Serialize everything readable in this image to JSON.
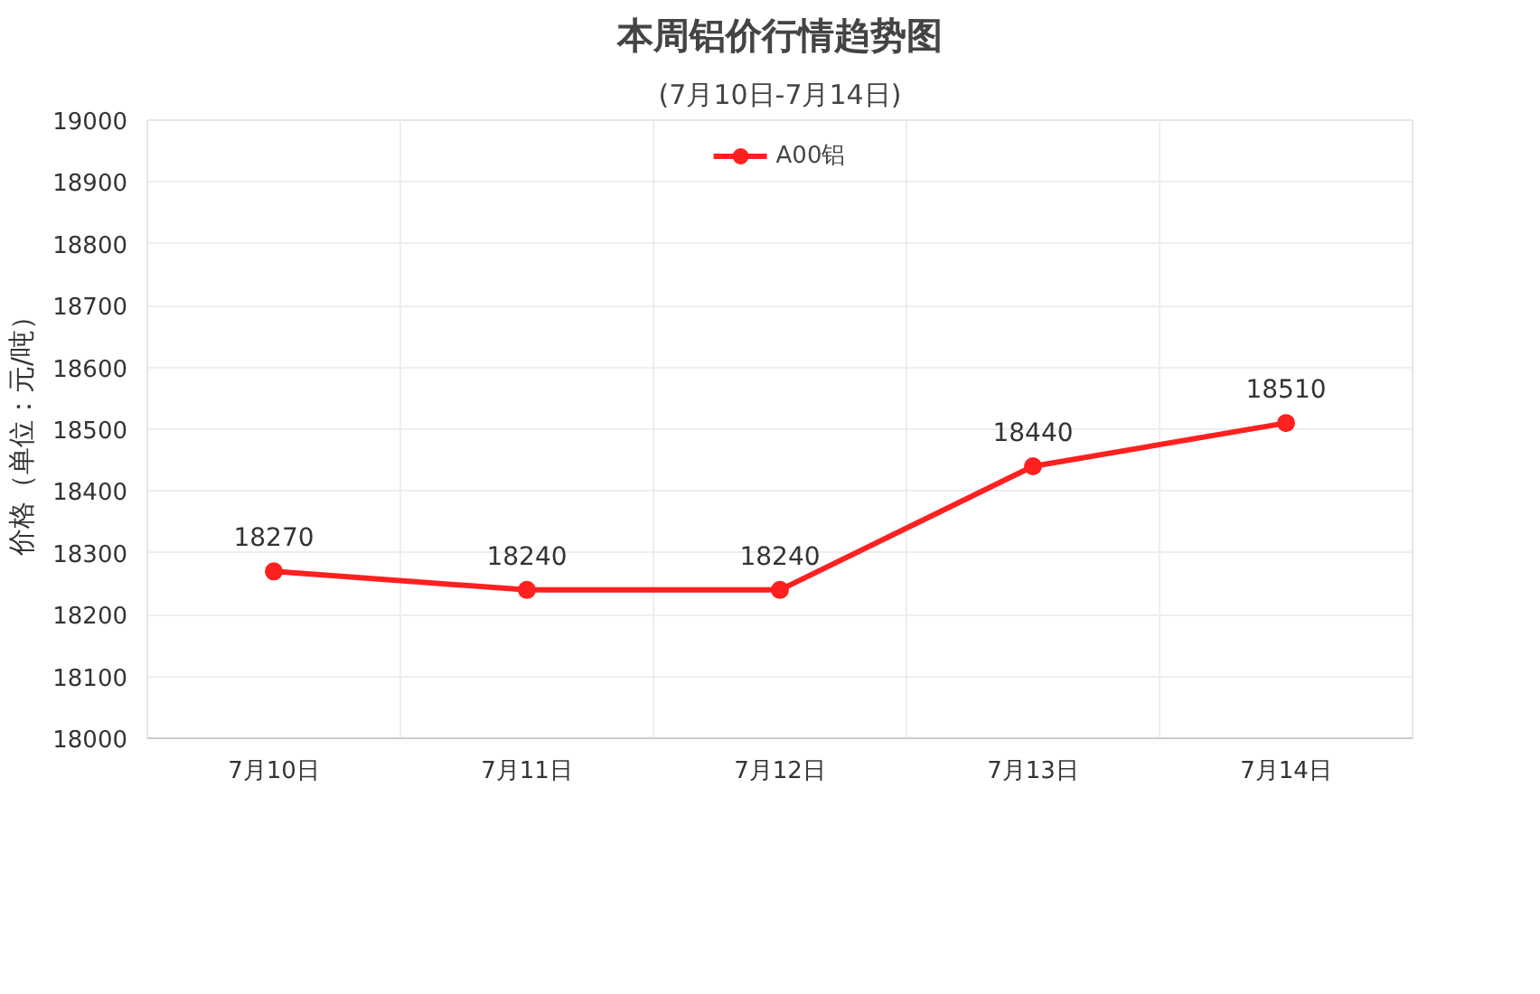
{
  "chart_data": {
    "type": "line",
    "title": "本周铝价行情趋势图",
    "subtitle": "(7月10日-7月14日)",
    "ylabel": "价格（单位：元/吨）",
    "categories": [
      "7月10日",
      "7月11日",
      "7月12日",
      "7月13日",
      "7月14日"
    ],
    "series": [
      {
        "name": "A00铝",
        "color": "#ff2020",
        "values": [
          18270,
          18240,
          18240,
          18440,
          18510
        ]
      }
    ],
    "ylim": [
      18000,
      19000
    ],
    "yticks": [
      18000,
      18100,
      18200,
      18300,
      18400,
      18500,
      18600,
      18700,
      18800,
      18900,
      19000
    ],
    "data_labels": true,
    "grid": true,
    "legend": "top",
    "marker": "circle",
    "line_style": "solid"
  }
}
